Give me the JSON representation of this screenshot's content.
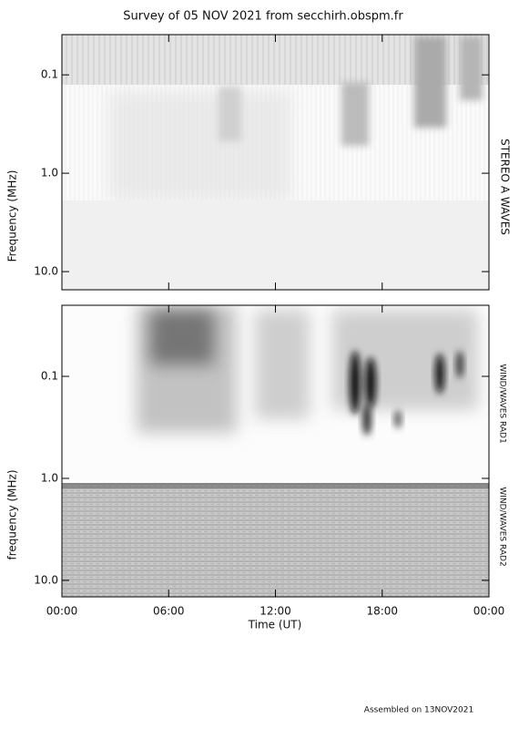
{
  "chart_data": [
    {
      "type": "spectrogram",
      "title": "Survey of 05 NOV 2021 from secchirh.obspm.fr",
      "ylabel": "Frequency (MHz)",
      "panel_label": "STEREO A WAVES",
      "log_y": true,
      "y_reversed": true,
      "ylim": [
        0.039,
        15.3
      ],
      "yticks": [
        0.1,
        {
          "value": 1,
          "label": "1.0"
        },
        {
          "value": 10,
          "label": "10.0"
        }
      ]
    },
    {
      "type": "spectrogram",
      "ylabel": "frequency (MHz)",
      "xlabel": "Time (UT)",
      "panel_label_upper": "WIND/WAVES RAD1",
      "panel_label_lower": "WIND/WAVES RAD2",
      "log_y": true,
      "y_reversed": true,
      "ylim": [
        0.0201,
        14.5
      ],
      "yticks": [
        0.1,
        {
          "value": 1,
          "label": "1.0"
        },
        {
          "value": 10,
          "label": "10.0"
        }
      ],
      "xlim": [
        0,
        24
      ],
      "xticks": [
        {
          "value": 0,
          "label": "00:00"
        },
        {
          "value": 6,
          "label": "06:00"
        },
        {
          "value": 12,
          "label": "12:00"
        },
        {
          "value": 18,
          "label": "18:00"
        },
        {
          "value": 24,
          "label": "00:00"
        }
      ]
    }
  ],
  "footer": "Assembled on 13NOV2021"
}
